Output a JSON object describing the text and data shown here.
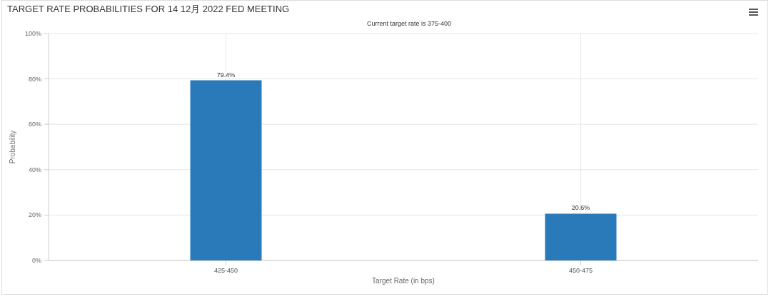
{
  "chart_data": {
    "type": "bar",
    "title": "TARGET RATE PROBABILITIES FOR 14 12月 2022 FED MEETING",
    "subtitle": "Current target rate is 375-400",
    "xlabel": "Target Rate (in bps)",
    "ylabel": "Probability",
    "categories": [
      "425-450",
      "450-475"
    ],
    "values": [
      79.4,
      20.6
    ],
    "color": "#2a7ab9",
    "value_labels": [
      "79.4%",
      "20.6%"
    ],
    "ylim": [
      0,
      100
    ],
    "yticks": [
      {
        "value": 0,
        "label": "0%"
      },
      {
        "value": 20,
        "label": "20%"
      },
      {
        "value": 40,
        "label": "40%"
      },
      {
        "value": 60,
        "label": "60%"
      },
      {
        "value": 80,
        "label": "80%"
      },
      {
        "value": 100,
        "label": "100%"
      }
    ],
    "grid": true
  }
}
